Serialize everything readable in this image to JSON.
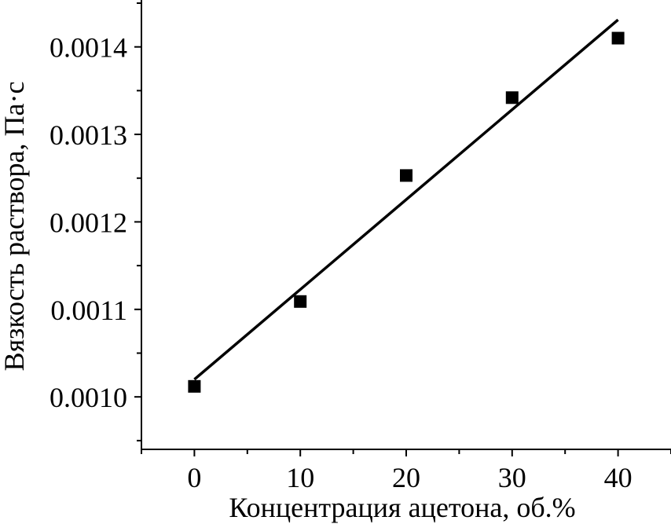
{
  "chart_data": {
    "type": "scatter",
    "xlabel": "Концентрация ацетона, об.%",
    "ylabel": "Вязкость раствора, Па·с",
    "x_ticks": [
      "0",
      "10",
      "20",
      "30",
      "40"
    ],
    "y_ticks": [
      "0.0010",
      "0.0011",
      "0.0012",
      "0.0013",
      "0.0014"
    ],
    "xlim": [
      -5,
      45
    ],
    "ylim": [
      0.00094,
      0.00145
    ],
    "grid": false,
    "series": [
      {
        "x": [
          0,
          10,
          20,
          30,
          40
        ],
        "y": [
          0.001012,
          0.001109,
          0.001253,
          0.001342,
          0.00141
        ],
        "marker": "square",
        "color": "#000000"
      }
    ],
    "fit_line": {
      "x": [
        0,
        40
      ],
      "y": [
        0.00102,
        0.001431
      ],
      "color": "#000000"
    }
  }
}
